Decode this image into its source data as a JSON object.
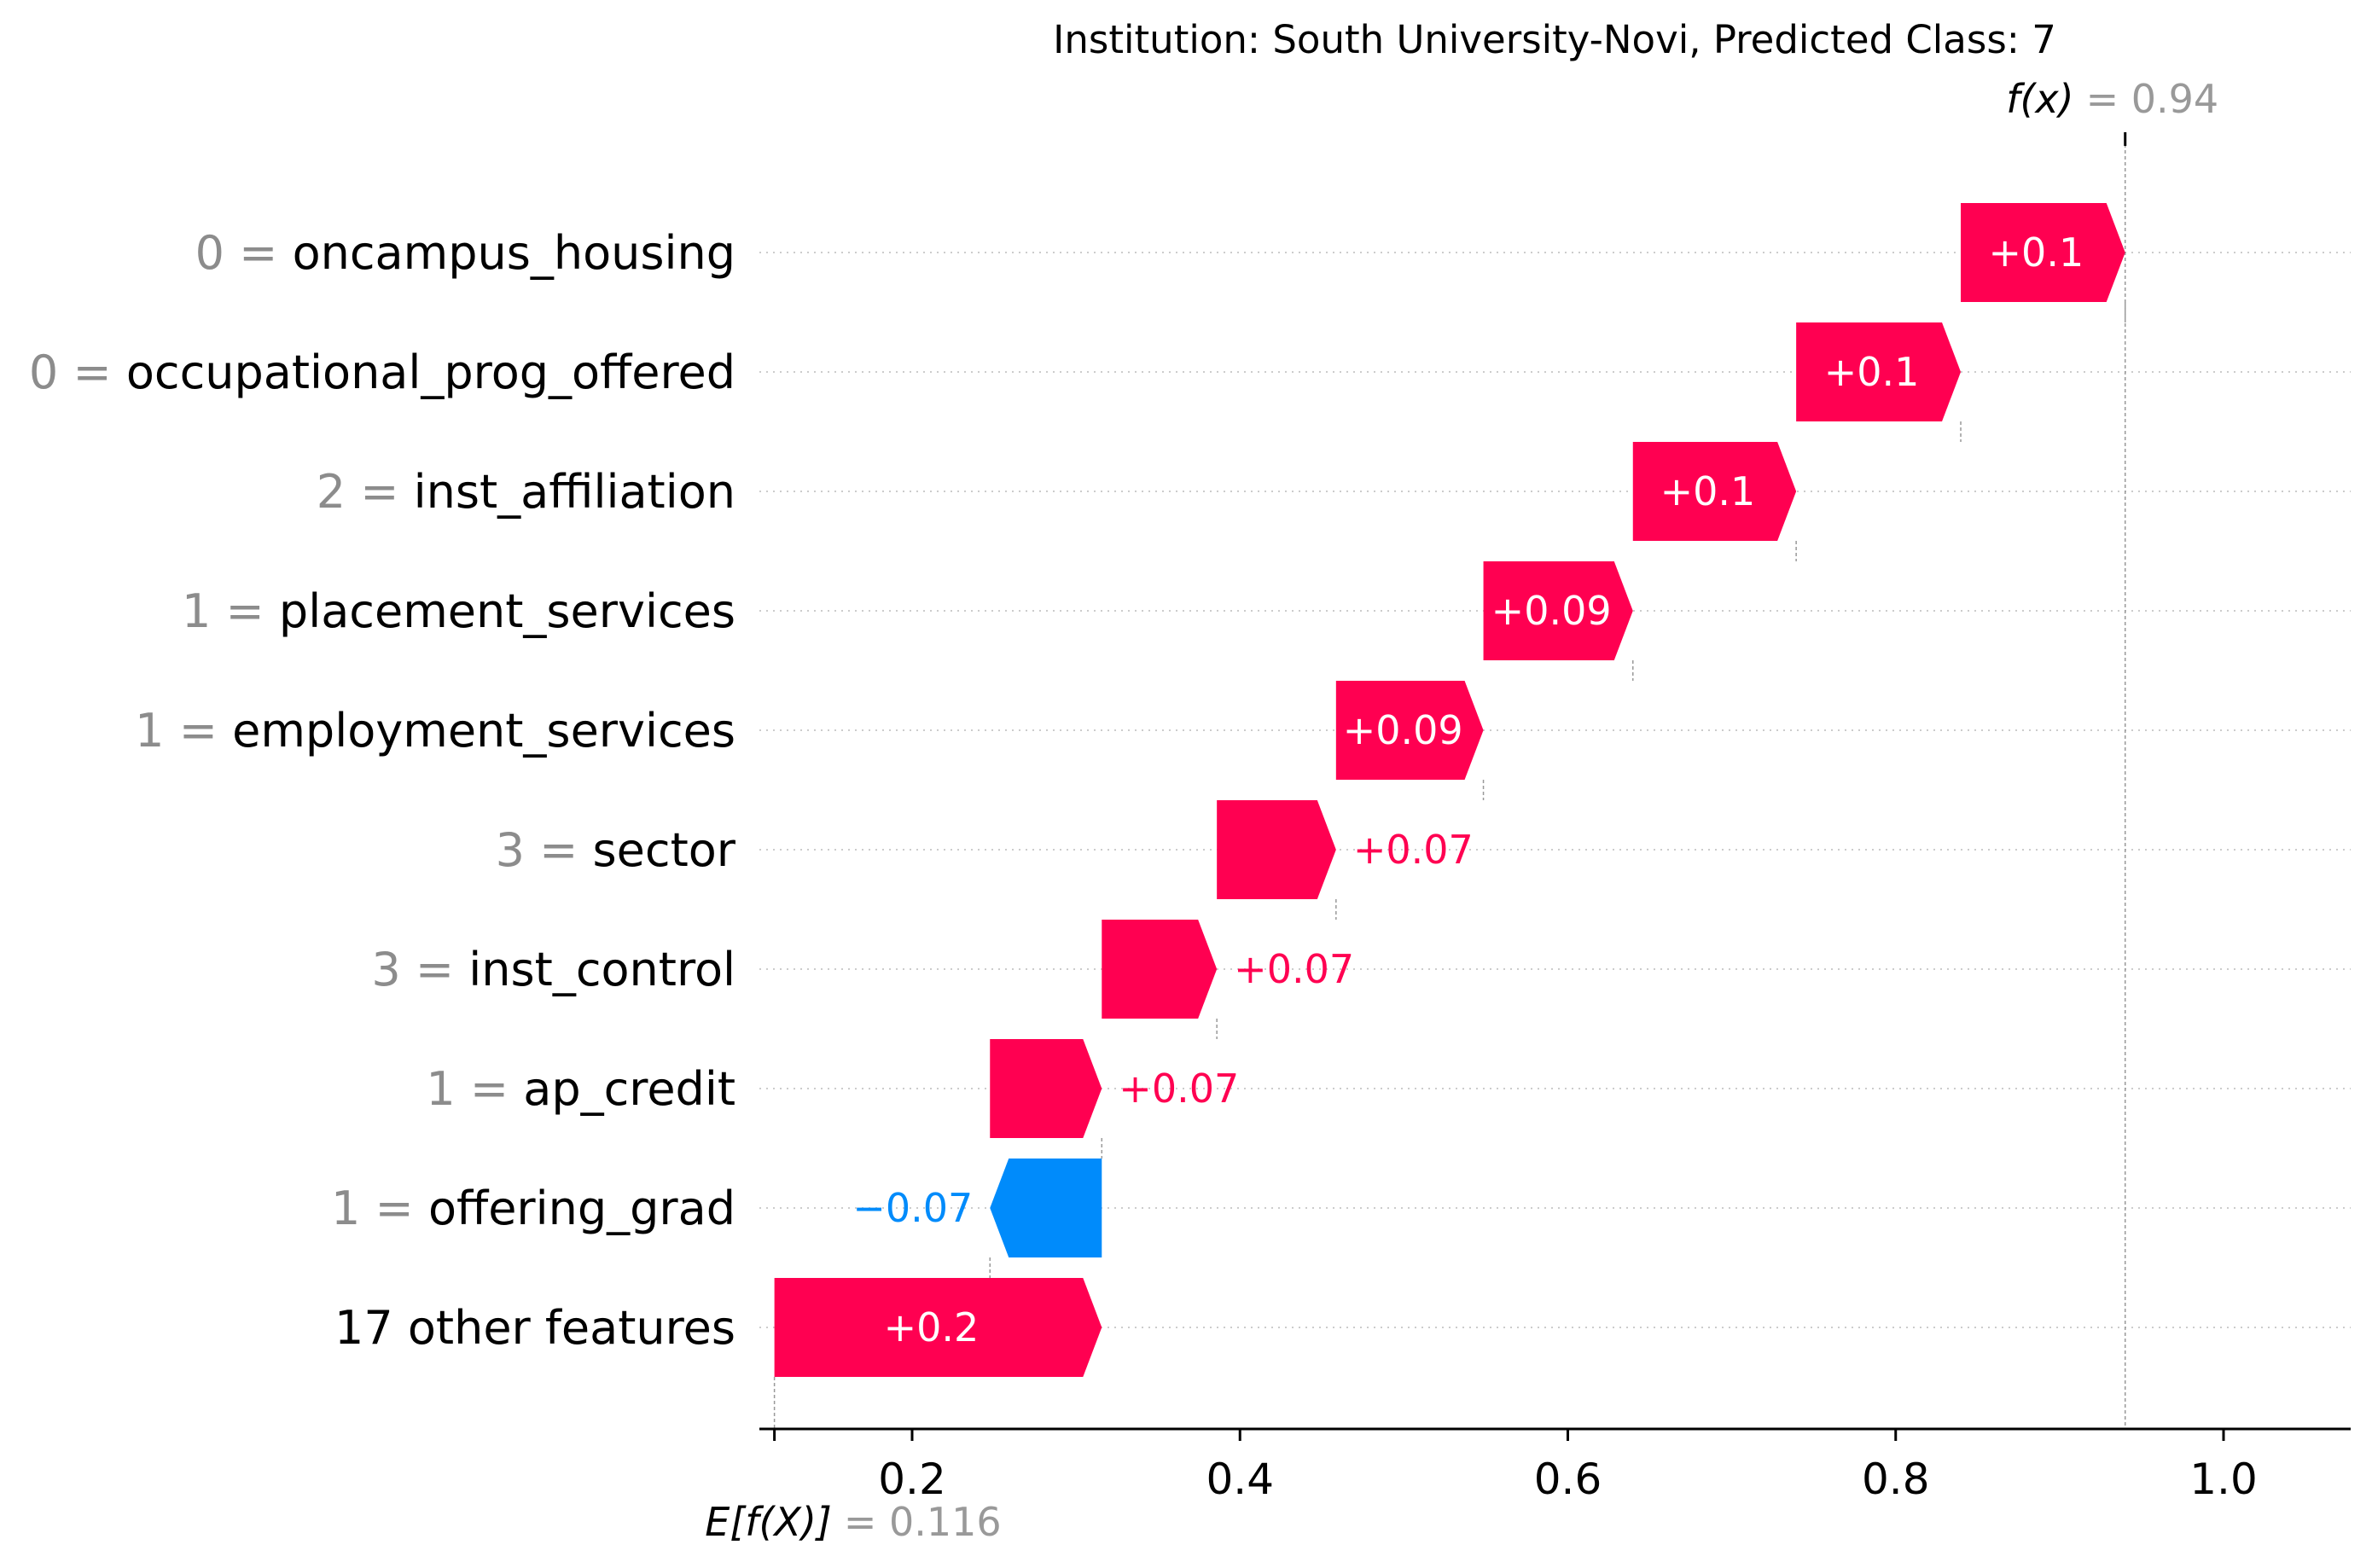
{
  "chart_data": {
    "type": "waterfall",
    "title": "Institution: South University-Novi, Predicted Class: 7",
    "base_value": 0.116,
    "base_label": "E[f(X)]",
    "base_value_text": "= 0.116",
    "output_value": 0.94,
    "output_label": "f(x)",
    "output_value_text": "= 0.94",
    "xlim": [
      0.1,
      1.07
    ],
    "xticks": [
      {
        "value": 0.2,
        "label": "0.2"
      },
      {
        "value": 0.4,
        "label": "0.4"
      },
      {
        "value": 0.6,
        "label": "0.6"
      },
      {
        "value": 0.8,
        "label": "0.8"
      },
      {
        "value": 1.0,
        "label": "1.0"
      }
    ],
    "features": [
      {
        "value_text": "0 =",
        "name": "oncampus_housing",
        "start": 0.8397,
        "end": 0.94,
        "label": "+0.1"
      },
      {
        "value_text": "0 =",
        "name": "occupational_prog_offered",
        "start": 0.7393,
        "end": 0.8397,
        "label": "+0.1"
      },
      {
        "value_text": "2 =",
        "name": "inst_affiliation",
        "start": 0.6397,
        "end": 0.7393,
        "label": "+0.1"
      },
      {
        "value_text": "1 =",
        "name": "placement_services",
        "start": 0.5485,
        "end": 0.6397,
        "label": "+0.09"
      },
      {
        "value_text": "1 =",
        "name": "employment_services",
        "start": 0.4586,
        "end": 0.5485,
        "label": "+0.09"
      },
      {
        "value_text": "3 =",
        "name": "sector",
        "start": 0.3859,
        "end": 0.4586,
        "label": "+0.07"
      },
      {
        "value_text": "3 =",
        "name": "inst_control",
        "start": 0.3157,
        "end": 0.3859,
        "label": "+0.07"
      },
      {
        "value_text": "1 =",
        "name": "ap_credit",
        "start": 0.2475,
        "end": 0.3157,
        "label": "+0.07"
      },
      {
        "value_text": "1 =",
        "name": "offering_grad",
        "start": 0.3157,
        "end": 0.2475,
        "label": "−0.07"
      },
      {
        "value_text": "",
        "name": "17 other features",
        "start": 0.116,
        "end": 0.3157,
        "label": "+0.2"
      }
    ],
    "colors": {
      "positive": "#ff0051",
      "negative": "#008bfb",
      "positive_text": "#ff0051",
      "negative_text": "#008bfb"
    }
  }
}
